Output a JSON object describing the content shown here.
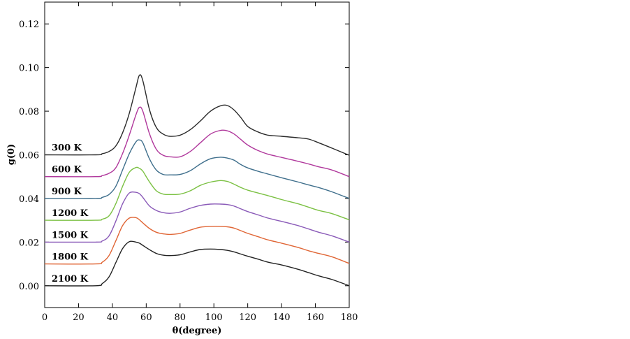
{
  "chart_data": {
    "type": "line",
    "title": "",
    "xlabel": "θ(degree)",
    "ylabel": "g(0)",
    "xlim": [
      0,
      180
    ],
    "ylim": [
      -0.01,
      0.13
    ],
    "x_ticks": [
      0,
      20,
      40,
      60,
      80,
      100,
      120,
      140,
      160,
      180
    ],
    "x_tick_labels": [
      "0",
      "20",
      "40",
      "60",
      "80",
      "100",
      "120",
      "140",
      "160",
      "180"
    ],
    "y_ticks": [
      0.0,
      0.02,
      0.04,
      0.06,
      0.08,
      0.1,
      0.12
    ],
    "y_tick_labels": [
      "0.00",
      "0.02",
      "0.04",
      "0.06",
      "0.08",
      "0.10",
      "0.12"
    ],
    "grid": false,
    "legend": "inline labels at left of curves",
    "x": [
      0,
      30,
      34,
      38,
      42,
      46,
      50,
      54,
      56,
      58,
      62,
      66,
      70,
      74,
      80,
      86,
      92,
      98,
      104,
      108,
      112,
      116,
      120,
      126,
      132,
      140,
      150,
      156,
      162,
      170,
      180
    ],
    "series": [
      {
        "name": "300 K",
        "color": "#2b2b2b",
        "values": [
          0.06,
          0.06,
          0.0605,
          0.0615,
          0.064,
          0.07,
          0.079,
          0.091,
          0.0965,
          0.094,
          0.0805,
          0.0725,
          0.0695,
          0.0685,
          0.069,
          0.0715,
          0.0755,
          0.08,
          0.0825,
          0.0826,
          0.0805,
          0.077,
          0.073,
          0.0705,
          0.069,
          0.0685,
          0.0678,
          0.0672,
          0.0655,
          0.063,
          0.0598
        ]
      },
      {
        "name": "600 K",
        "color": "#b0389c",
        "values": [
          0.05,
          0.05,
          0.0505,
          0.0515,
          0.054,
          0.0605,
          0.069,
          0.0785,
          0.0818,
          0.08,
          0.0695,
          0.0625,
          0.0598,
          0.0591,
          0.0591,
          0.0615,
          0.0655,
          0.0695,
          0.0712,
          0.071,
          0.0695,
          0.067,
          0.0645,
          0.062,
          0.0603,
          0.0588,
          0.057,
          0.0558,
          0.0545,
          0.053,
          0.05
        ]
      },
      {
        "name": "900 K",
        "color": "#3f6f8c",
        "values": [
          0.04,
          0.04,
          0.0405,
          0.0418,
          0.0455,
          0.053,
          0.0605,
          0.066,
          0.0668,
          0.0655,
          0.058,
          0.053,
          0.051,
          0.0508,
          0.051,
          0.0527,
          0.0558,
          0.0582,
          0.0589,
          0.0585,
          0.0575,
          0.0555,
          0.054,
          0.0525,
          0.0512,
          0.0495,
          0.0475,
          0.0462,
          0.045,
          0.043,
          0.04
        ]
      },
      {
        "name": "1200 K",
        "color": "#7cc144",
        "values": [
          0.03,
          0.03,
          0.0305,
          0.032,
          0.0375,
          0.0455,
          0.052,
          0.0542,
          0.0538,
          0.0525,
          0.0475,
          0.0435,
          0.042,
          0.0418,
          0.042,
          0.0435,
          0.046,
          0.0475,
          0.0482,
          0.0478,
          0.0465,
          0.045,
          0.0438,
          0.0425,
          0.0413,
          0.0395,
          0.0375,
          0.036,
          0.0345,
          0.033,
          0.0302
        ]
      },
      {
        "name": "1500 K",
        "color": "#8a5ab8",
        "values": [
          0.02,
          0.02,
          0.0205,
          0.0228,
          0.0295,
          0.0375,
          0.0425,
          0.0428,
          0.0422,
          0.0405,
          0.0365,
          0.0345,
          0.0335,
          0.0332,
          0.0338,
          0.0355,
          0.0368,
          0.0374,
          0.0374,
          0.0372,
          0.0365,
          0.0352,
          0.034,
          0.0325,
          0.031,
          0.0295,
          0.0275,
          0.026,
          0.0245,
          0.0228,
          0.02
        ]
      },
      {
        "name": "1800 K",
        "color": "#e06636",
        "values": [
          0.01,
          0.01,
          0.0108,
          0.0138,
          0.0205,
          0.0275,
          0.031,
          0.0312,
          0.0302,
          0.0288,
          0.0262,
          0.0245,
          0.0238,
          0.0235,
          0.024,
          0.0255,
          0.0268,
          0.0272,
          0.0272,
          0.027,
          0.0264,
          0.0252,
          0.024,
          0.0225,
          0.021,
          0.0195,
          0.0175,
          0.016,
          0.0148,
          0.0132,
          0.0102
        ]
      },
      {
        "name": "2100 K",
        "color": "#222222",
        "values": [
          0.0,
          0.0,
          0.001,
          0.004,
          0.0105,
          0.017,
          0.0202,
          0.02,
          0.0195,
          0.0185,
          0.0165,
          0.0148,
          0.014,
          0.0138,
          0.0142,
          0.0155,
          0.0166,
          0.0168,
          0.0166,
          0.0162,
          0.0155,
          0.0145,
          0.0135,
          0.0122,
          0.0108,
          0.0095,
          0.0075,
          0.006,
          0.0045,
          0.0028,
          0.0
        ]
      }
    ]
  }
}
